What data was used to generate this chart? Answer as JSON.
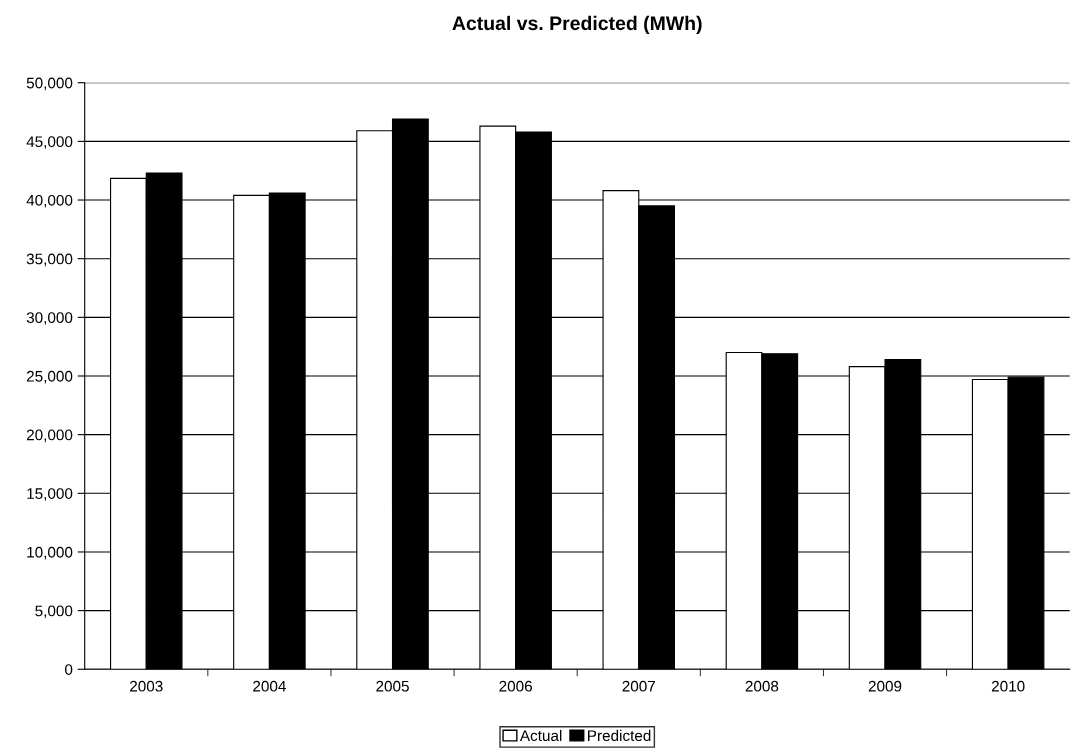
{
  "chart_data": {
    "type": "bar",
    "title": "Actual vs. Predicted (MWh)",
    "categories": [
      "2003",
      "2004",
      "2005",
      "2006",
      "2007",
      "2008",
      "2009",
      "2010"
    ],
    "series": [
      {
        "name": "Actual",
        "color": "#ffffff",
        "values": [
          41850,
          40400,
          45900,
          46300,
          40800,
          27000,
          25800,
          24700
        ]
      },
      {
        "name": "Predicted",
        "color": "#000000",
        "values": [
          42300,
          40600,
          46900,
          45800,
          39500,
          26900,
          26400,
          24900
        ]
      }
    ],
    "ylim": [
      0,
      50000
    ],
    "yticks": [
      {
        "value": 0,
        "label": "0"
      },
      {
        "value": 5000,
        "label": "5,000"
      },
      {
        "value": 10000,
        "label": "10,000"
      },
      {
        "value": 15000,
        "label": "15,000"
      },
      {
        "value": 20000,
        "label": "20,000"
      },
      {
        "value": 25000,
        "label": "25,000"
      },
      {
        "value": 30000,
        "label": "30,000"
      },
      {
        "value": 35000,
        "label": "35,000"
      },
      {
        "value": 40000,
        "label": "40,000"
      },
      {
        "value": 45000,
        "label": "45,000"
      },
      {
        "value": 50000,
        "label": "50,000"
      }
    ],
    "grid": "y",
    "legend": "bottom"
  }
}
